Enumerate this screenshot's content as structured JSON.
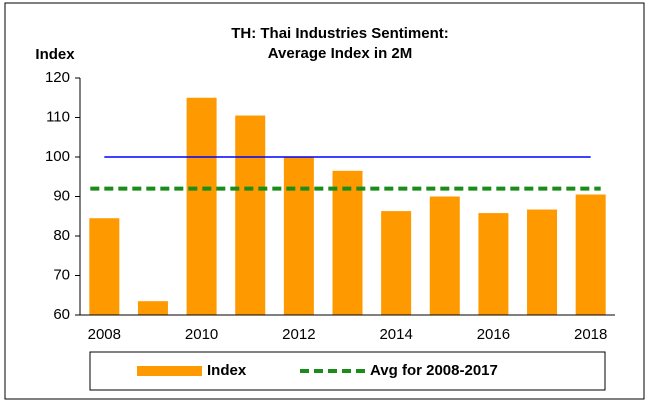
{
  "chart_data": {
    "type": "bar",
    "title": [
      "TH: Thai Industries Sentiment:",
      "Average Index in 2M"
    ],
    "y_axis_label": "Index",
    "categories": [
      "2008",
      null,
      "2010",
      null,
      "2012",
      null,
      "2014",
      null,
      "2016",
      null,
      "2018"
    ],
    "series": [
      {
        "name": "Index",
        "color": "#ff9900",
        "values": [
          84.5,
          63.5,
          115,
          110.5,
          100,
          96.5,
          86.3,
          90,
          85.8,
          86.7,
          90.5
        ]
      }
    ],
    "reference_line": {
      "value": 100,
      "color": "#0000ff"
    },
    "average": {
      "name": "Avg for 2008-2017",
      "value": 92,
      "color": "#1a8c1a"
    },
    "ylim": [
      60,
      120
    ],
    "yticks": [
      60,
      70,
      80,
      90,
      100,
      110,
      120
    ]
  }
}
